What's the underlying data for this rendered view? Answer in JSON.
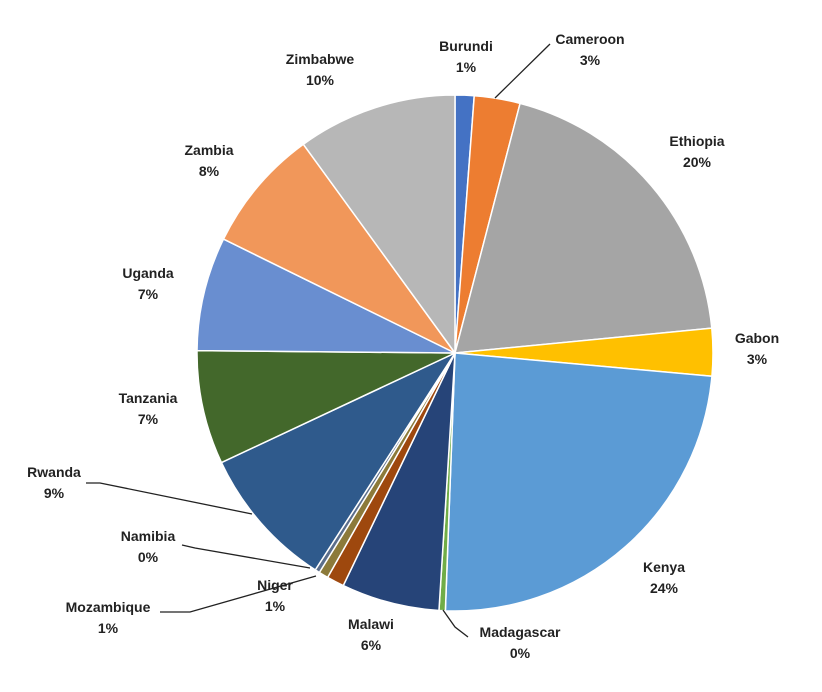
{
  "chart_data": {
    "type": "pie",
    "title": "",
    "start_angle_deg": 0,
    "slices": [
      {
        "label": "Burundi",
        "pct_label": "1%",
        "value": 1.2,
        "color": "#4472C4"
      },
      {
        "label": "Cameroon",
        "pct_label": "3%",
        "value": 2.9,
        "color": "#ED7D31"
      },
      {
        "label": "Ethiopia",
        "pct_label": "20%",
        "value": 19.6,
        "color": "#A5A5A5"
      },
      {
        "label": "Gabon",
        "pct_label": "3%",
        "value": 3.0,
        "color": "#FFC000"
      },
      {
        "label": "Kenya",
        "pct_label": "24%",
        "value": 24.4,
        "color": "#5B9BD5"
      },
      {
        "label": "Madagascar",
        "pct_label": "0%",
        "value": 0.4,
        "color": "#70AD47"
      },
      {
        "label": "Malawi",
        "pct_label": "6%",
        "value": 6.2,
        "color": "#264478"
      },
      {
        "label": "Mozambique",
        "pct_label": "1%",
        "value": 1.1,
        "color": "#9E480E"
      },
      {
        "label": "Niger",
        "pct_label": "1%",
        "value": 0.6,
        "color": "#8C7A3A"
      },
      {
        "label": "Namibia",
        "pct_label": "0%",
        "value": 0.3,
        "color": "#5B6E8C"
      },
      {
        "label": "Rwanda",
        "pct_label": "9%",
        "value": 9.0,
        "color": "#2F5A8C"
      },
      {
        "label": "Tanzania",
        "pct_label": "7%",
        "value": 7.2,
        "color": "#43682B"
      },
      {
        "label": "Uganda",
        "pct_label": "7%",
        "value": 7.2,
        "color": "#698ED0"
      },
      {
        "label": "Zambia",
        "pct_label": "8%",
        "value": 7.8,
        "color": "#F1975A"
      },
      {
        "label": "Zimbabwe",
        "pct_label": "10%",
        "value": 10.1,
        "color": "#B7B7B7"
      }
    ]
  }
}
